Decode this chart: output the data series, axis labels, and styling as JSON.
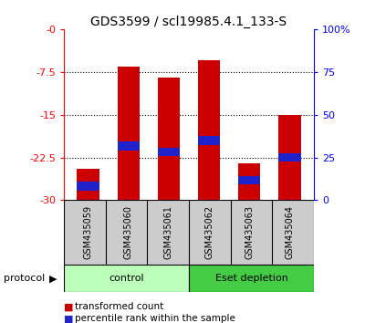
{
  "title": "GDS3599 / scl19985.4.1_133-S",
  "samples": [
    "GSM435059",
    "GSM435060",
    "GSM435061",
    "GSM435062",
    "GSM435063",
    "GSM435064"
  ],
  "red_bar_tops": [
    -24.5,
    -6.5,
    -8.5,
    -5.5,
    -23.5,
    -15.0
  ],
  "blue_marker_pos": [
    -27.5,
    -20.5,
    -21.5,
    -19.5,
    -26.5,
    -22.5
  ],
  "ylim_left": [
    -30,
    0
  ],
  "ylim_right": [
    0,
    100
  ],
  "yticks_left": [
    0,
    -7.5,
    -15,
    -22.5,
    -30
  ],
  "yticks_right": [
    0,
    25,
    50,
    75,
    100
  ],
  "ytick_labels_left": [
    "-0",
    "-7.5",
    "-15",
    "-22.5",
    "-30"
  ],
  "ytick_labels_right": [
    "0",
    "25",
    "50",
    "75",
    "100%"
  ],
  "bar_bottom": -30,
  "bar_color": "#cc0000",
  "blue_color": "#2222cc",
  "bar_width": 0.55,
  "group_colors_light": "#bbffbb",
  "group_colors_dark": "#44cc44",
  "group_labels": [
    "control",
    "Eset depletion"
  ],
  "protocol_label": "protocol",
  "legend_red": "transformed count",
  "legend_blue": "percentile rank within the sample",
  "background_color": "#ffffff",
  "title_fontsize": 10,
  "tick_label_fontsize": 8,
  "sample_label_fontsize": 7,
  "group_label_fontsize": 8,
  "legend_fontsize": 7.5
}
